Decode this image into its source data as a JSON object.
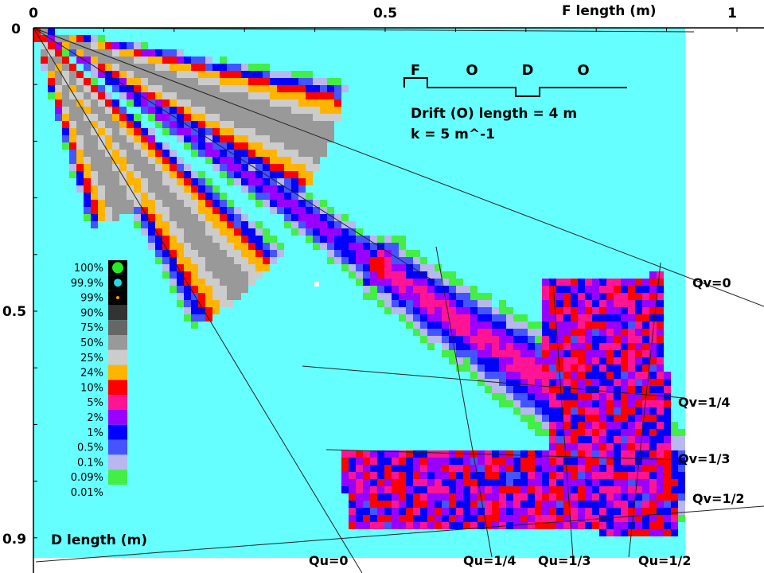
{
  "chart_data": {
    "type": "heatmap",
    "x_axis": {
      "label": "F length (m)",
      "ticks": [
        "0",
        "0.5",
        "1"
      ],
      "range": [
        0,
        1.0
      ]
    },
    "y_axis": {
      "label": "D length (m)",
      "ticks": [
        "0",
        "0.5",
        "0.9"
      ],
      "range": [
        0,
        0.9
      ]
    },
    "legend": {
      "entries": [
        {
          "label": "100%",
          "color": "#22ee22",
          "marker": "large-circle"
        },
        {
          "label": "99.9%",
          "color": "#22dddd",
          "marker": "circle"
        },
        {
          "label": "99%",
          "color": "#ff9900",
          "marker": "small-dot"
        },
        {
          "label": "90%",
          "color": "#333333"
        },
        {
          "label": "75%",
          "color": "#666666"
        },
        {
          "label": "50%",
          "color": "#999999"
        },
        {
          "label": "25%",
          "color": "#cccccc"
        },
        {
          "label": "24%",
          "color": "#ffb400"
        },
        {
          "label": "10%",
          "color": "#ff0000"
        },
        {
          "label": "5%",
          "color": "#ff1493"
        },
        {
          "label": "2%",
          "color": "#9900ff"
        },
        {
          "label": "1%",
          "color": "#0000ff"
        },
        {
          "label": "0.5%",
          "color": "#4455ff"
        },
        {
          "label": "0.1%",
          "color": "#b8b8ee"
        },
        {
          "label": "0.09%",
          "color": "#44ee44"
        },
        {
          "label": "0.01%",
          "color": "#66ffff"
        }
      ]
    },
    "annotations": {
      "lattice_labels": [
        "F",
        "O",
        "D",
        "O"
      ],
      "drift_text": "Drift (O) length = 4 m",
      "k_text": "k = 5 m^-1"
    },
    "contour_lines": [
      {
        "label": "Qv=0"
      },
      {
        "label": "Qv=1/4"
      },
      {
        "label": "Qv=1/3"
      },
      {
        "label": "Qv=1/2"
      },
      {
        "label": "Qu=0"
      },
      {
        "label": "Qu=1/4"
      },
      {
        "label": "Qu=1/3"
      },
      {
        "label": "Qu=1/2"
      }
    ]
  }
}
